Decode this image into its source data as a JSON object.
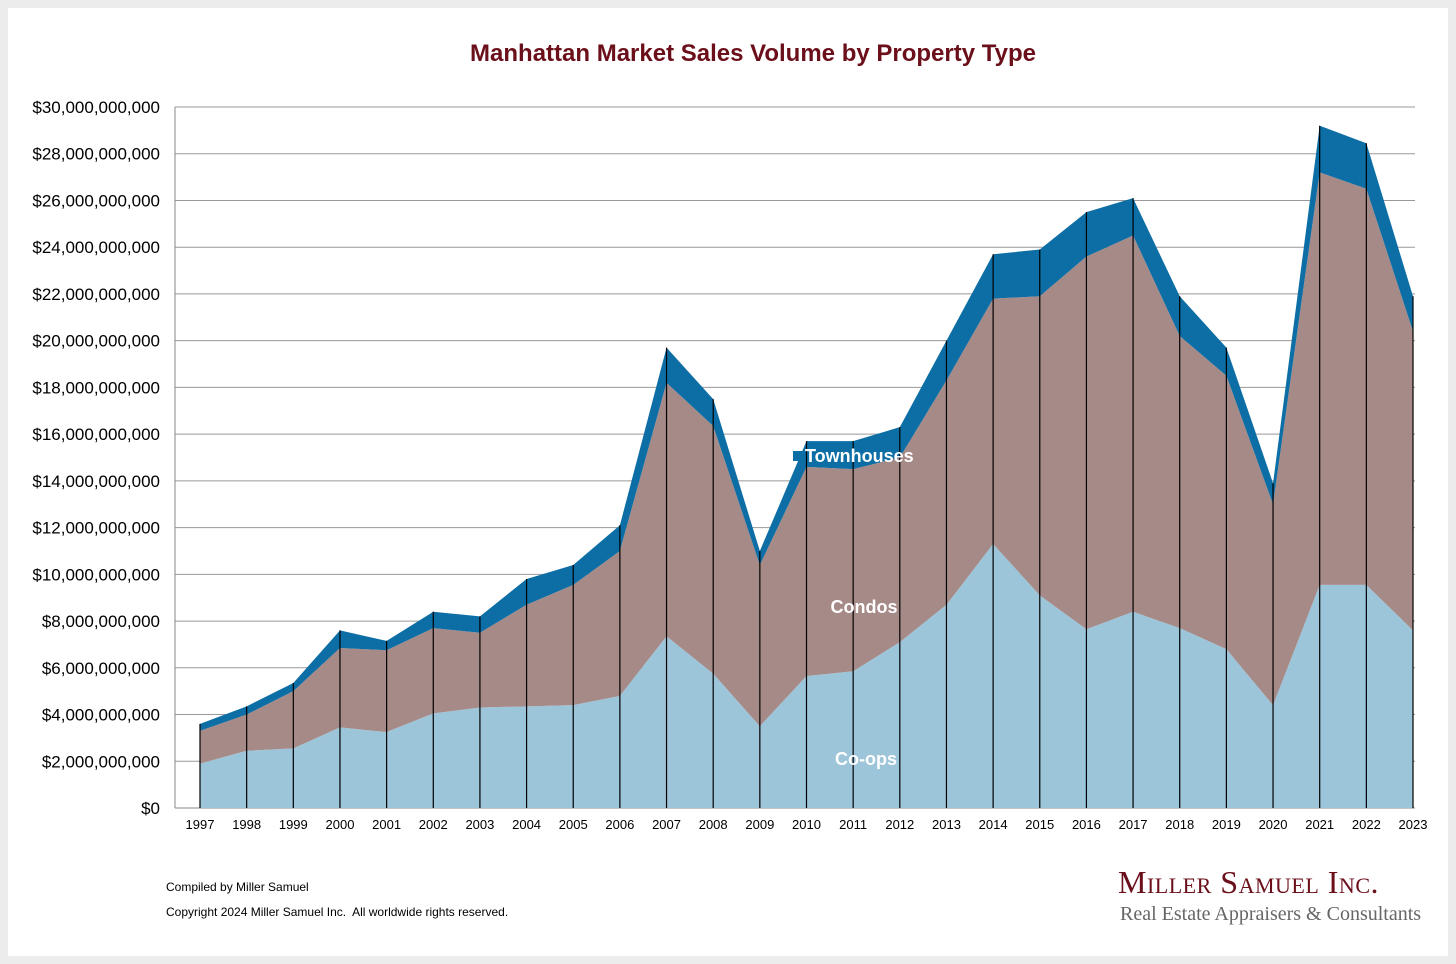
{
  "chart_data": {
    "type": "area",
    "stacked": true,
    "title": "Manhattan Market Sales Volume by Property Type",
    "xlabel": "",
    "ylabel": "",
    "units": "billions USD",
    "ylim": [
      0,
      30
    ],
    "grid": true,
    "categories": [
      "1997",
      "1998",
      "1999",
      "2000",
      "2001",
      "2002",
      "2003",
      "2004",
      "2005",
      "2006",
      "2007",
      "2008",
      "2009",
      "2010",
      "2011",
      "2012",
      "2013",
      "2014",
      "2015",
      "2016",
      "2017",
      "2018",
      "2019",
      "2020",
      "2021",
      "2022",
      "2023"
    ],
    "y_ticks": [
      "$0",
      "$2,000,000,000",
      "$4,000,000,000",
      "$6,000,000,000",
      "$8,000,000,000",
      "$10,000,000,000",
      "$12,000,000,000",
      "$14,000,000,000",
      "$16,000,000,000",
      "$18,000,000,000",
      "$20,000,000,000",
      "$22,000,000,000",
      "$24,000,000,000",
      "$26,000,000,000",
      "$28,000,000,000",
      "$30,000,000,000"
    ],
    "series": [
      {
        "name": "Co-ops",
        "color": "#9dc5da",
        "values": [
          1.9,
          2.45,
          2.55,
          3.45,
          3.25,
          4.05,
          4.3,
          4.35,
          4.4,
          4.8,
          7.35,
          5.75,
          3.5,
          5.65,
          5.85,
          7.1,
          8.7,
          11.3,
          9.1,
          7.65,
          8.4,
          7.7,
          6.8,
          4.4,
          9.55,
          9.55,
          7.6
        ]
      },
      {
        "name": "Condos",
        "color": "#a68a87",
        "values": [
          1.4,
          1.55,
          2.45,
          3.4,
          3.5,
          3.65,
          3.2,
          4.35,
          5.15,
          6.2,
          10.85,
          10.6,
          6.9,
          8.95,
          8.65,
          7.9,
          9.6,
          10.5,
          12.8,
          15.95,
          16.1,
          12.5,
          11.7,
          8.6,
          17.65,
          16.95,
          12.8
        ]
      },
      {
        "name": "Townhouses",
        "color": "#0d6ea5",
        "values": [
          0.3,
          0.35,
          0.35,
          0.75,
          0.4,
          0.7,
          0.7,
          1.1,
          0.85,
          1.1,
          1.5,
          1.15,
          0.6,
          1.1,
          1.2,
          1.3,
          1.7,
          1.9,
          2.0,
          1.9,
          1.6,
          1.7,
          1.2,
          0.9,
          2.0,
          1.95,
          1.5
        ]
      }
    ]
  },
  "footer": {
    "compiled": "Compiled by Miller Samuel",
    "copyright": "Copyright 2024 Miller Samuel Inc.  All worldwide rights reserved."
  },
  "logo": {
    "name": "Miller Samuel Inc.",
    "tagline": "Real Estate Appraisers & Consultants"
  }
}
